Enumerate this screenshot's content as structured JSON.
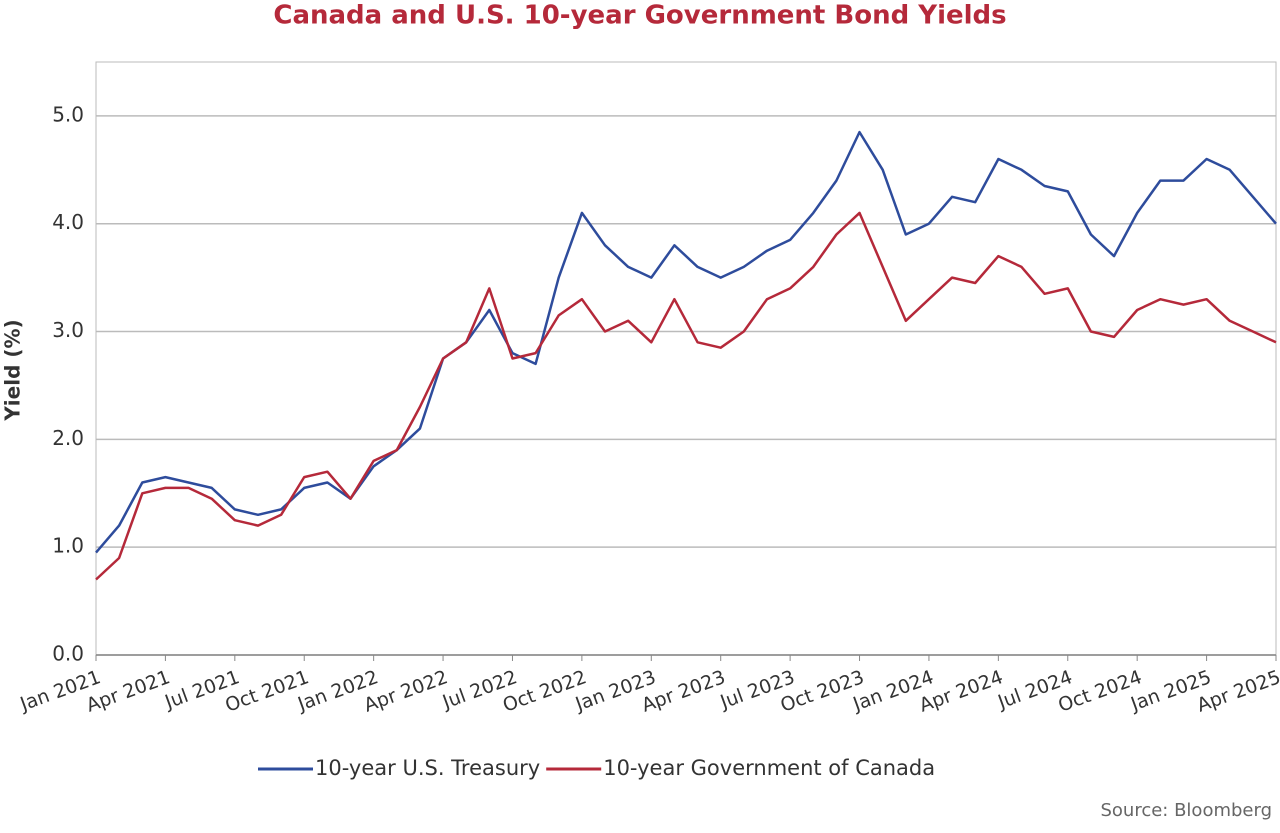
{
  "chart_data": {
    "type": "line",
    "title": "Canada and U.S. 10-year Government Bond Yields",
    "y_label": "Yield (%)",
    "source": "Source: Bloomberg",
    "categories": [
      "Jan 2021",
      null,
      null,
      "Apr 2021",
      null,
      null,
      "Jul 2021",
      null,
      null,
      "Oct 2021",
      null,
      null,
      "Jan 2022",
      null,
      null,
      "Apr 2022",
      null,
      null,
      "Jul 2022",
      null,
      null,
      "Oct 2022",
      null,
      null,
      "Jan 2023",
      null,
      null,
      "Apr 2023",
      null,
      null,
      "Jul 2023",
      null,
      null,
      "Oct 2023",
      null,
      null,
      "Jan 2024",
      null,
      null,
      "Apr 2024",
      null,
      null,
      "Jul 2024",
      null,
      null,
      "Oct 2024",
      null,
      null,
      "Jan 2025",
      null,
      null,
      "Apr 2025"
    ],
    "series": [
      {
        "name": "10-year U.S. Treasury",
        "color": "#2e4c9c",
        "values": [
          0.95,
          1.2,
          1.6,
          1.65,
          1.6,
          1.55,
          1.35,
          1.3,
          1.35,
          1.55,
          1.6,
          1.45,
          1.75,
          1.9,
          2.1,
          2.75,
          2.9,
          3.2,
          2.8,
          2.7,
          3.5,
          4.1,
          3.8,
          3.6,
          3.5,
          3.8,
          3.6,
          3.5,
          3.6,
          3.75,
          3.85,
          4.1,
          4.4,
          4.85,
          4.5,
          3.9,
          4.0,
          4.25,
          4.2,
          4.6,
          4.5,
          4.35,
          4.3,
          3.9,
          3.7,
          4.1,
          4.4,
          4.4,
          4.6,
          4.5,
          4.25,
          4.0
        ]
      },
      {
        "name": "10-year Government of Canada",
        "color": "#b5293a",
        "values": [
          0.7,
          0.9,
          1.5,
          1.55,
          1.55,
          1.45,
          1.25,
          1.2,
          1.3,
          1.65,
          1.7,
          1.45,
          1.8,
          1.9,
          2.3,
          2.75,
          2.9,
          3.4,
          2.75,
          2.8,
          3.15,
          3.3,
          3.0,
          3.1,
          2.9,
          3.3,
          2.9,
          2.85,
          3.0,
          3.3,
          3.4,
          3.6,
          3.9,
          4.1,
          3.6,
          3.1,
          3.3,
          3.5,
          3.45,
          3.7,
          3.6,
          3.35,
          3.4,
          3.0,
          2.95,
          3.2,
          3.3,
          3.25,
          3.3,
          3.1,
          3.0,
          2.9
        ]
      }
    ],
    "ylim": [
      0,
      5.5
    ],
    "yticks": [
      {
        "value": 0,
        "label": "0.0"
      },
      {
        "value": 1,
        "label": "1.0"
      },
      {
        "value": 2,
        "label": "2.0"
      },
      {
        "value": 3,
        "label": "3.0"
      },
      {
        "value": 4,
        "label": "4.0"
      },
      {
        "value": 5,
        "label": "5.0"
      }
    ],
    "grid": true
  }
}
